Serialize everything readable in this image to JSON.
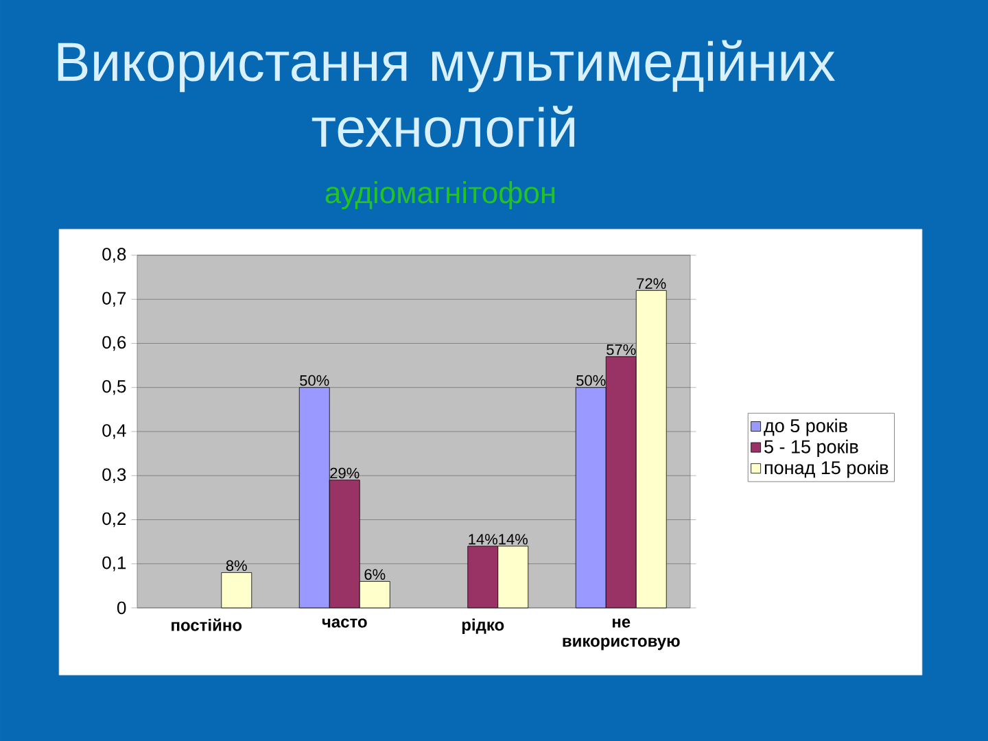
{
  "chart_data": {
    "type": "bar",
    "title": "Використання мультимедійних технологій",
    "subtitle": "аудіомагнітофон",
    "categories": [
      "постійно",
      "часто",
      "рідко",
      "не використовую"
    ],
    "series": [
      {
        "name": "до 5 років",
        "color": "#9999ff",
        "values": [
          null,
          0.5,
          null,
          0.5
        ],
        "value_labels": [
          null,
          "50%",
          null,
          "50%"
        ]
      },
      {
        "name": "5 - 15 років",
        "color": "#993366",
        "values": [
          null,
          0.29,
          0.14,
          0.57
        ],
        "value_labels": [
          null,
          "29%",
          "14%",
          "57%"
        ]
      },
      {
        "name": "понад 15 років",
        "color": "#ffffcc",
        "values": [
          0.08,
          0.06,
          0.14,
          0.72
        ],
        "value_labels": [
          "8%",
          "6%",
          "14%",
          "72%"
        ]
      }
    ],
    "ylim": [
      0,
      0.8
    ],
    "yticks": [
      0,
      {
        "value": 0.1,
        "label": "0,1"
      },
      {
        "value": 0.2,
        "label": "0,2"
      },
      {
        "value": 0.3,
        "label": "0,3"
      },
      {
        "value": 0.4,
        "label": "0,4"
      },
      {
        "value": 0.5,
        "label": "0,5"
      },
      {
        "value": 0.6,
        "label": "0,6"
      },
      {
        "value": 0.7,
        "label": "0,7"
      },
      {
        "value": 0.8,
        "label": "0,8"
      }
    ],
    "grid": "y",
    "legend": "right"
  }
}
